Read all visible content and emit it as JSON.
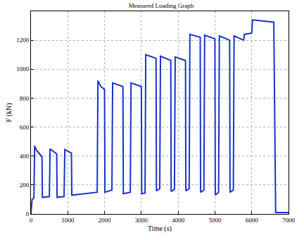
{
  "chart_data": {
    "type": "line",
    "title": "Measured Loading Graph",
    "x_label": "Time (s)",
    "y_label": "F (kN)",
    "x": [
      0,
      30,
      80,
      100,
      150,
      300,
      310,
      500,
      520,
      700,
      710,
      900,
      920,
      1100,
      1110,
      1800,
      1820,
      1900,
      2000,
      2010,
      2200,
      2220,
      2500,
      2510,
      2700,
      2720,
      3000,
      3010,
      3100,
      3120,
      3400,
      3410,
      3500,
      3520,
      3800,
      3810,
      3900,
      3920,
      4200,
      4210,
      4300,
      4320,
      4600,
      4610,
      4700,
      4720,
      5000,
      5010,
      5100,
      5120,
      5400,
      5410,
      5500,
      5520,
      5780,
      5790,
      5800,
      6000,
      6020,
      6600,
      6650,
      7000
    ],
    "values": [
      0,
      100,
      110,
      470,
      440,
      395,
      115,
      120,
      450,
      415,
      115,
      120,
      445,
      420,
      130,
      150,
      920,
      880,
      860,
      150,
      165,
      905,
      880,
      140,
      150,
      905,
      880,
      140,
      145,
      1100,
      1075,
      160,
      175,
      1090,
      1060,
      155,
      170,
      1085,
      1060,
      160,
      175,
      1240,
      1220,
      150,
      165,
      1235,
      1210,
      130,
      150,
      1230,
      1200,
      150,
      165,
      1230,
      1200,
      1230,
      1240,
      1250,
      1340,
      1325,
      10,
      10
    ],
    "color": "#1a33cc",
    "xlim": [
      0,
      7000
    ],
    "xticks": [
      0,
      1000,
      2000,
      3000,
      4000,
      5000,
      6000,
      7000
    ],
    "ylim": [
      0,
      1400
    ],
    "yticks": [
      0,
      200,
      400,
      600,
      800,
      1000,
      1200
    ],
    "grid": true
  }
}
